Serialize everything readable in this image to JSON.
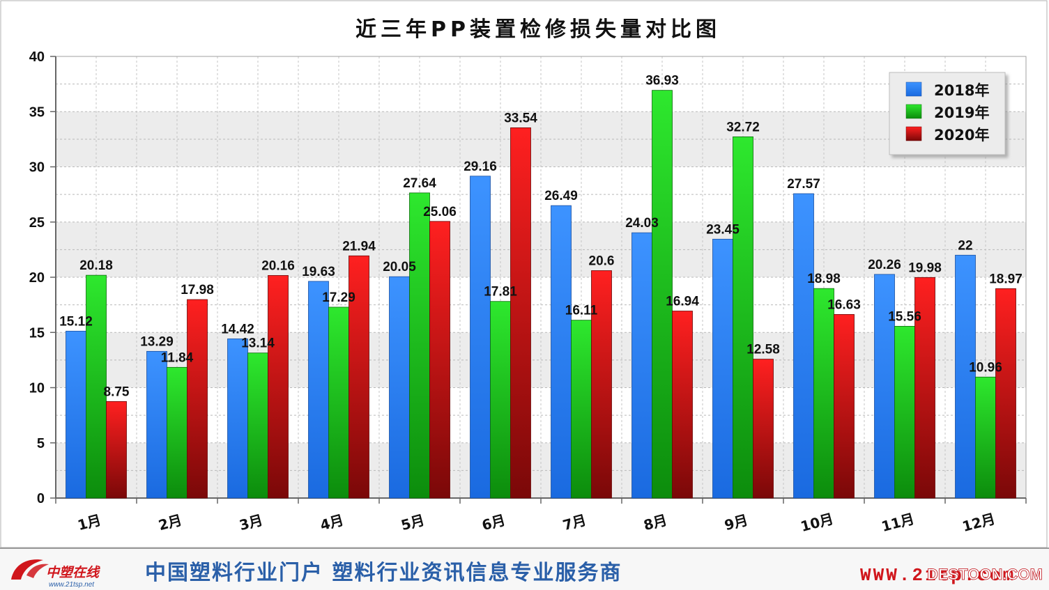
{
  "chart_data": {
    "type": "bar",
    "title": "近三年PP装置检修损失量对比图",
    "xlabel": "",
    "ylabel": "",
    "ylim": [
      0,
      40
    ],
    "yticks": [
      0,
      5,
      10,
      15,
      20,
      25,
      30,
      35,
      40
    ],
    "grid": true,
    "legend_position": "top-right",
    "categories": [
      "1月",
      "2月",
      "3月",
      "4月",
      "5月",
      "6月",
      "7月",
      "8月",
      "9月",
      "10月",
      "11月",
      "12月"
    ],
    "series": [
      {
        "name": "2018年",
        "color": "#2a7fff",
        "values": [
          15.12,
          13.29,
          14.42,
          19.63,
          20.05,
          29.16,
          26.49,
          24.03,
          23.45,
          27.57,
          20.26,
          22
        ],
        "labels": [
          "15.12",
          "13.29",
          "14.42",
          "19.63",
          "20.05",
          "29.16",
          "26.49",
          "24.03",
          "23.45",
          "27.57",
          "20.26",
          "22"
        ]
      },
      {
        "name": "2019年",
        "color": "#1fd21f",
        "values": [
          20.18,
          11.84,
          13.14,
          17.29,
          27.64,
          17.81,
          16.11,
          36.93,
          32.72,
          18.98,
          15.56,
          10.96
        ],
        "labels": [
          "20.18",
          "11.84",
          "13.14",
          "17.29",
          "27.64",
          "17.81",
          "16.11",
          "36.93",
          "32.72",
          "18.98",
          "15.56",
          "10.96"
        ]
      },
      {
        "name": "2020年",
        "color": "#e01515",
        "values": [
          8.75,
          17.98,
          20.16,
          21.94,
          25.06,
          33.54,
          20.6,
          16.94,
          12.58,
          16.63,
          19.98,
          18.97
        ],
        "labels": [
          "8.75",
          "17.98",
          "20.16",
          "21.94",
          "25.06",
          "33.54",
          "20.6",
          "16.94",
          "12.58",
          "16.63",
          "19.98",
          "18.97"
        ]
      }
    ]
  },
  "footer": {
    "logo_text": "中塑在线",
    "logo_url": "www.21tsp.net",
    "slogan": "中国塑料行业门户   塑料行业资讯信息专业服务商",
    "website": "WWW.21tp.com",
    "watermark": "DESTOON.COM"
  },
  "colors": {
    "blue_top": "#3d93ff",
    "blue_bottom": "#1a6ae0",
    "green_top": "#2ee82e",
    "green_bottom": "#0c8c0c",
    "red_top": "#ff2020",
    "red_bottom": "#7a0808",
    "plot_band": "#ececec"
  }
}
